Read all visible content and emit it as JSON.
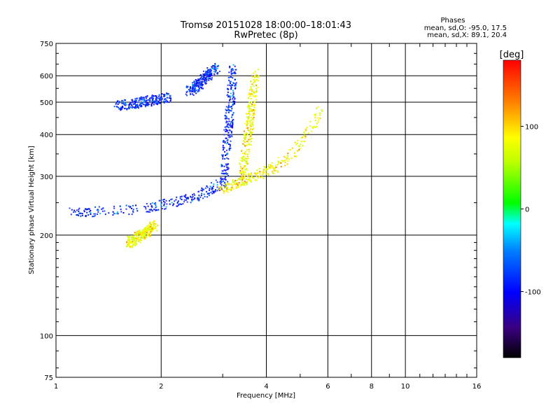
{
  "chart_data": {
    "type": "scatter",
    "title": "Tromsø 20151028 18:00:00–18:01:43",
    "subtitle": "RwPretec (8p)",
    "xlabel": "Frequency [MHz]",
    "ylabel": "Stationary phase Virtual Height [km]",
    "x_scale": "log",
    "y_scale": "log",
    "xlim": [
      1,
      16
    ],
    "ylim": [
      75,
      750
    ],
    "x_ticks": [
      1,
      2,
      4,
      6,
      8,
      10,
      16
    ],
    "y_ticks": [
      75,
      100,
      200,
      300,
      400,
      500,
      600,
      750
    ],
    "grid": true,
    "phase_box": {
      "heading": "Phases",
      "line1": "mean, sd,O: -95.0, 17.5",
      "line2": "mean, sd,X: 89.1, 20.4"
    },
    "colorbar": {
      "label": "[deg]",
      "ticks": [
        100,
        0,
        -100
      ],
      "range": [
        -180,
        180
      ]
    },
    "traces": [
      {
        "phase": "O",
        "x": [
          1.1,
          1.3,
          1.6,
          1.9,
          2.2,
          2.5,
          2.8,
          3.0
        ],
        "y": [
          235,
          236,
          239,
          244,
          252,
          262,
          275,
          290
        ]
      },
      {
        "phase": "O",
        "x": [
          3.0,
          3.05,
          3.1,
          3.15,
          3.2
        ],
        "y": [
          290,
          350,
          420,
          520,
          630
        ]
      },
      {
        "phase": "X",
        "x": [
          2.9,
          3.2,
          3.5,
          3.8,
          4.2,
          4.7,
          5.2,
          5.7
        ],
        "y": [
          275,
          285,
          295,
          305,
          320,
          350,
          400,
          480
        ]
      },
      {
        "phase": "X",
        "x": [
          3.4,
          3.5,
          3.6,
          3.7
        ],
        "y": [
          300,
          380,
          470,
          620
        ]
      },
      {
        "phase": "O",
        "x": [
          1.5,
          1.7,
          1.9,
          2.1
        ],
        "y": [
          490,
          500,
          510,
          520
        ]
      },
      {
        "phase": "O",
        "x": [
          2.4,
          2.55,
          2.7,
          2.85
        ],
        "y": [
          540,
          570,
          600,
          640
        ]
      },
      {
        "phase": "X",
        "x": [
          1.6,
          1.7,
          1.8,
          1.9
        ],
        "y": [
          190,
          198,
          205,
          215
        ]
      }
    ]
  }
}
